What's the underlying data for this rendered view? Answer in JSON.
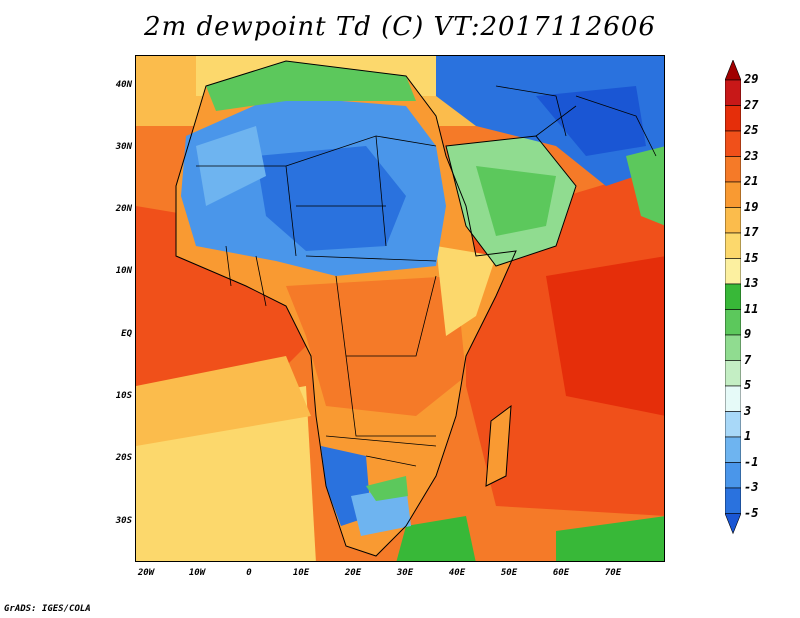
{
  "title": "2m dewpoint Td (C) VT:2017112606",
  "credit": "GrADS: IGES/COLA",
  "map": {
    "region": "Africa, Arabia and western Indian Ocean",
    "variable": "2m dewpoint temperature",
    "units": "C",
    "lat_ticks": [
      "40N",
      "30N",
      "20N",
      "10N",
      "EQ",
      "10S",
      "20S",
      "30S"
    ],
    "lon_ticks": [
      "20W",
      "10W",
      "0",
      "10E",
      "20E",
      "30E",
      "40E",
      "50E",
      "60E",
      "70E"
    ]
  },
  "colorbar": {
    "levels": [
      "29",
      "27",
      "25",
      "23",
      "21",
      "19",
      "17",
      "15",
      "13",
      "11",
      "9",
      "7",
      "5",
      "3",
      "1",
      "-1",
      "-3",
      "-5"
    ],
    "colors": [
      "#a00000",
      "#c81818",
      "#e52e0a",
      "#f0501a",
      "#f57a28",
      "#f99a32",
      "#fbbc4c",
      "#fcd86c",
      "#fcf0a0",
      "#38b838",
      "#5cc85c",
      "#90dc90",
      "#c4eec4",
      "#e6faf8",
      "#a8d8f8",
      "#6eb4f0",
      "#4a96ea",
      "#2a72de",
      "#1a56d4"
    ]
  }
}
